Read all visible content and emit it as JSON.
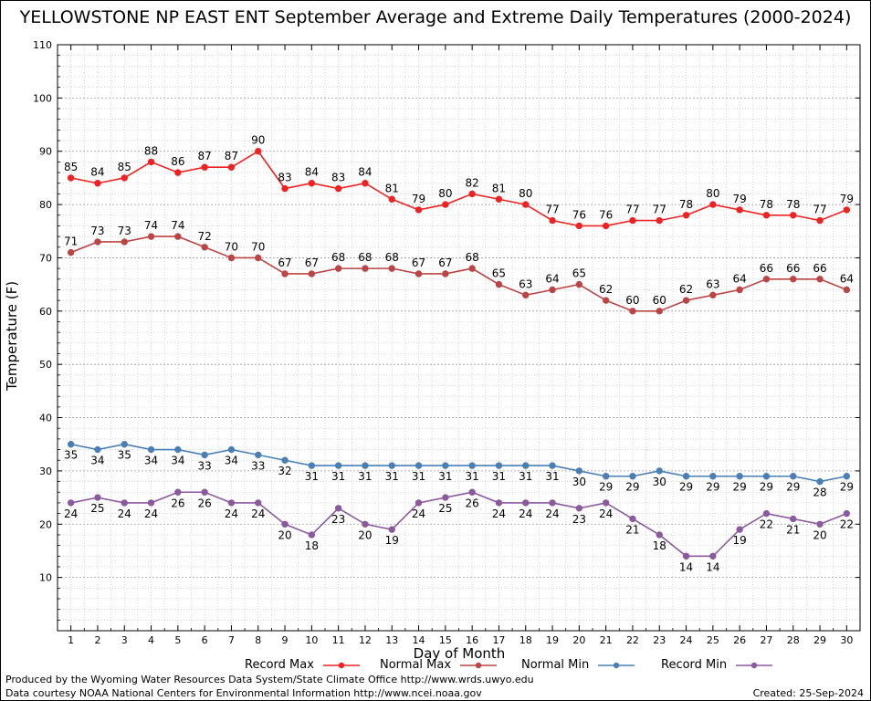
{
  "chart_data": {
    "type": "line",
    "title": "YELLOWSTONE NP EAST ENT September Average and Extreme Daily Temperatures (2000-2024)",
    "xlabel": "Day of Month",
    "ylabel": "Temperature (F)",
    "x": [
      1,
      2,
      3,
      4,
      5,
      6,
      7,
      8,
      9,
      10,
      11,
      12,
      13,
      14,
      15,
      16,
      17,
      18,
      19,
      20,
      21,
      22,
      23,
      24,
      25,
      26,
      27,
      28,
      29,
      30
    ],
    "xlim": [
      0.5,
      30.5
    ],
    "ylim": [
      0,
      110
    ],
    "yticks": [
      10,
      20,
      30,
      40,
      50,
      60,
      70,
      80,
      90,
      100,
      110
    ],
    "grid": true,
    "legend_position": "bottom",
    "series": [
      {
        "name": "Record Max",
        "color": "#ee2222",
        "values": [
          85,
          84,
          85,
          88,
          86,
          87,
          87,
          90,
          83,
          84,
          83,
          84,
          81,
          79,
          80,
          82,
          81,
          80,
          77,
          76,
          76,
          77,
          77,
          78,
          80,
          79,
          78,
          78,
          77,
          79
        ]
      },
      {
        "name": "Normal Max",
        "color": "#bb4444",
        "values": [
          71,
          73,
          73,
          74,
          74,
          72,
          70,
          70,
          67,
          67,
          68,
          68,
          68,
          67,
          67,
          68,
          65,
          63,
          64,
          65,
          62,
          60,
          60,
          62,
          63,
          64,
          66,
          66,
          66,
          64
        ]
      },
      {
        "name": "Normal Min",
        "color": "#4a7fb5",
        "values": [
          35,
          34,
          35,
          34,
          34,
          33,
          34,
          33,
          32,
          31,
          31,
          31,
          31,
          31,
          31,
          31,
          31,
          31,
          31,
          30,
          29,
          29,
          30,
          29,
          29,
          29,
          29,
          29,
          28,
          29
        ]
      },
      {
        "name": "Record Min",
        "color": "#8b5a9e",
        "values": [
          24,
          25,
          24,
          24,
          26,
          26,
          24,
          24,
          20,
          18,
          23,
          20,
          19,
          24,
          25,
          26,
          24,
          24,
          24,
          23,
          24,
          21,
          18,
          14,
          14,
          19,
          22,
          21,
          20,
          22
        ]
      }
    ]
  },
  "footer": {
    "produced_by": "Produced by the Wyoming Water Resources Data System/State Climate Office http://www.wrds.uwyo.edu",
    "data_courtesy": "Data courtesy NOAA National Centers for Environmental Information http://www.ncei.noaa.gov",
    "created": "Created:  25-Sep-2024"
  }
}
